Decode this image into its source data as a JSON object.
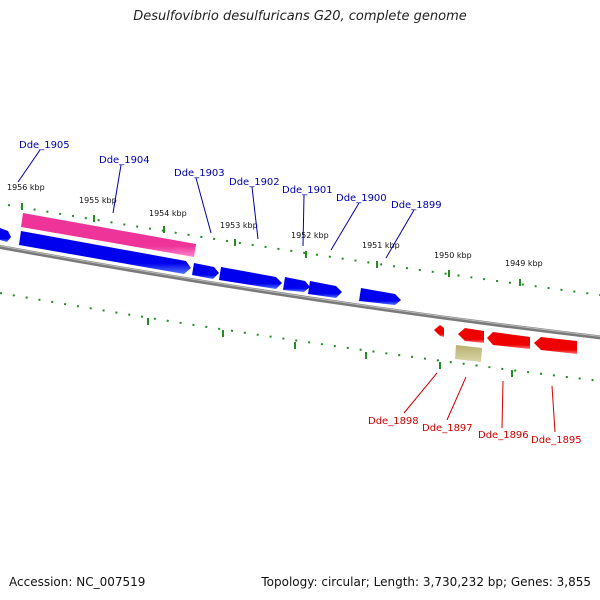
{
  "title": "Desulfovibrio desulfuricans G20, complete genome",
  "footer": {
    "accession": "Accession: NC_007519",
    "summary": "Topology: circular; Length: 3,730,232 bp; Genes: 3,855"
  },
  "colors": {
    "forward_gene": "#0000ee",
    "reverse_gene": "#ee0000",
    "highlight_gene": "#ee3399",
    "other_feature": "#b8b070",
    "backbone": "#888888",
    "ticks": "#228b22",
    "forward_label": "#0000aa",
    "reverse_label": "#cc0000"
  },
  "kbp_labels": [
    "1956 kbp",
    "1955 kbp",
    "1954 kbp",
    "1953 kbp",
    "1952 kbp",
    "1951 kbp",
    "1950 kbp",
    "1949 kbp"
  ],
  "forward_genes": [
    "Dde_1905",
    "Dde_1904",
    "Dde_1903",
    "Dde_1902",
    "Dde_1901",
    "Dde_1900",
    "Dde_1899"
  ],
  "reverse_genes": [
    "Dde_1898",
    "Dde_1897",
    "Dde_1896",
    "Dde_1895"
  ]
}
